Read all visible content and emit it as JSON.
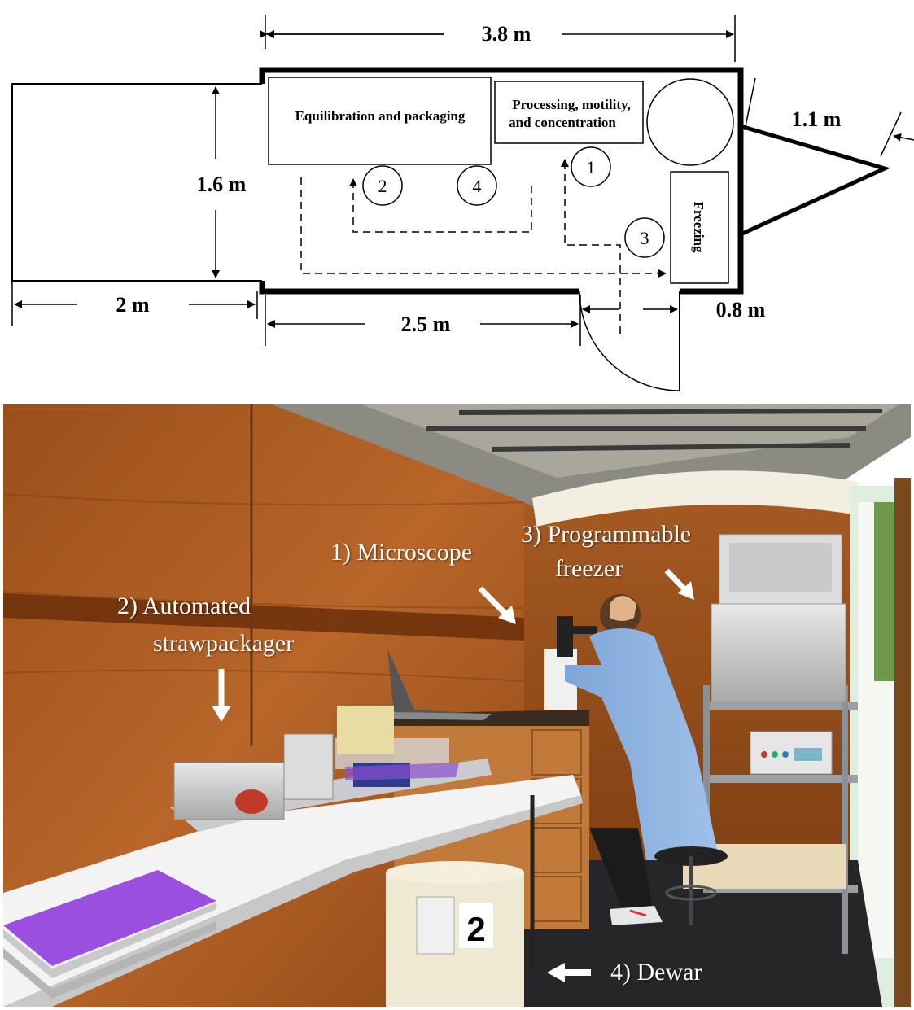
{
  "floor_plan": {
    "dimensions": {
      "total_length": "3.8 m",
      "width": "1.6 m",
      "tongue": "1.1 m",
      "vehicle_length": "2 m",
      "wall_segment": "2.5 m",
      "door_width": "0.8 m"
    },
    "stations": {
      "equilibration": "Equilibration and packaging",
      "processing_line1": "Processing, motility,",
      "processing_line2": "and concentration",
      "freezing": "Freezing"
    },
    "markers": [
      "1",
      "2",
      "3",
      "4"
    ]
  },
  "photo": {
    "labels": {
      "microscope": "1)  Microscope",
      "packager_line1": "2)  Automated",
      "packager_line2": "strawpackager",
      "freezer_line1": "3)  Programmable",
      "freezer_line2": "freezer",
      "dewar": "4) Dewar"
    },
    "dewar_tag": "2"
  }
}
